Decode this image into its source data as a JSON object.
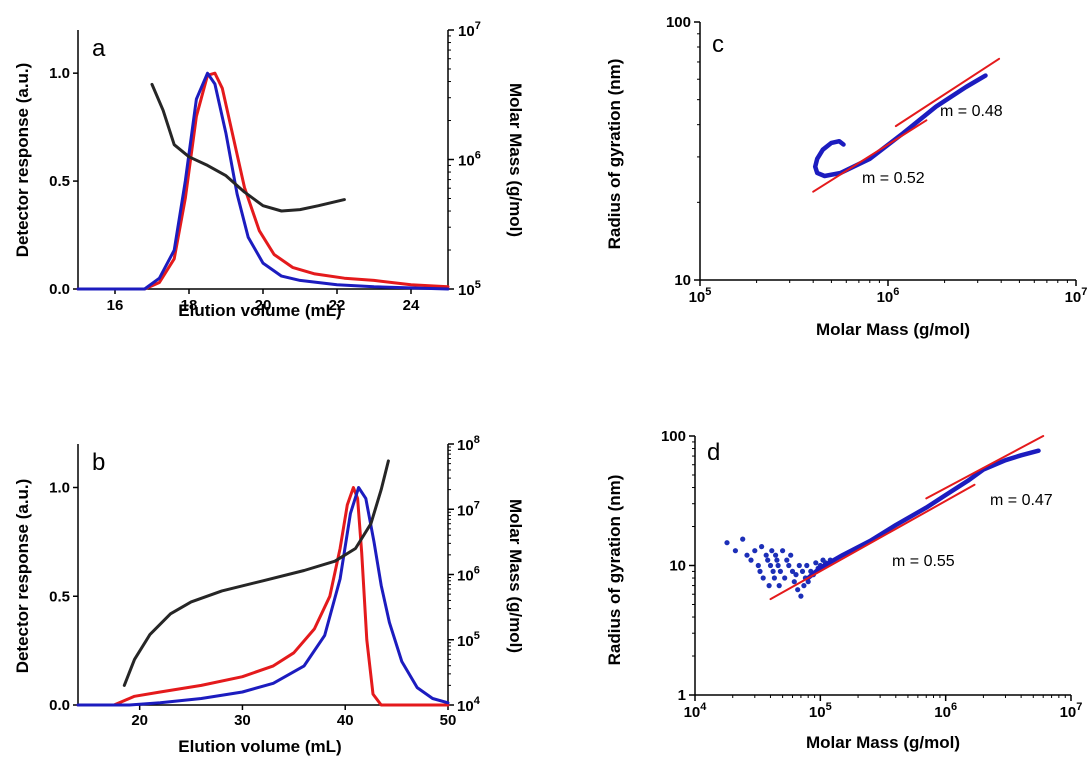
{
  "colors": {
    "red": "#e41a1c",
    "blue": "#1c1cbf",
    "black": "#262626",
    "fit": "#e01e1e",
    "dots": "#1c2fb8"
  },
  "chart_data": [
    {
      "panel": "a",
      "type": "line",
      "xlabel": "Elution volume (mL)",
      "ylabel": "Detector response (a.u.)",
      "y2label": "Molar Mass (g/mol)",
      "xlim": [
        15,
        25
      ],
      "ylim": [
        0,
        1.2
      ],
      "y2lim": [
        100000,
        10000000
      ],
      "y2scale": "log",
      "xticks": [
        "16",
        "18",
        "20",
        "22",
        "24"
      ],
      "yticks": [
        "0.0",
        "0.5",
        "1.0"
      ],
      "y2ticks": [
        [
          "10",
          "5"
        ],
        [
          "10",
          "6"
        ],
        [
          "10",
          "7"
        ]
      ],
      "series": [
        {
          "color": "red",
          "axis": "y",
          "x": [
            15,
            16.8,
            17.2,
            17.6,
            17.9,
            18.2,
            18.5,
            18.7,
            18.9,
            19.2,
            19.5,
            19.9,
            20.3,
            20.8,
            21.4,
            22.2,
            23,
            24,
            25
          ],
          "y": [
            0,
            0,
            0.03,
            0.14,
            0.42,
            0.8,
            0.99,
            1.0,
            0.93,
            0.7,
            0.47,
            0.27,
            0.16,
            0.1,
            0.07,
            0.05,
            0.04,
            0.02,
            0.01
          ]
        },
        {
          "color": "blue",
          "axis": "y",
          "x": [
            15,
            16.8,
            17.2,
            17.6,
            17.9,
            18.2,
            18.5,
            18.7,
            19.0,
            19.3,
            19.6,
            20.0,
            20.5,
            21.0,
            22,
            23,
            25
          ],
          "y": [
            0,
            0,
            0.05,
            0.18,
            0.5,
            0.88,
            1.0,
            0.95,
            0.72,
            0.44,
            0.24,
            0.12,
            0.06,
            0.04,
            0.02,
            0.01,
            0.0
          ]
        },
        {
          "color": "black",
          "axis": "y2",
          "x": [
            17.0,
            17.3,
            17.6,
            18.0,
            18.5,
            19.0,
            19.5,
            20.0,
            20.5,
            21.0,
            21.5,
            22.2
          ],
          "y": [
            3800000,
            2400000,
            1300000,
            1050000,
            900000,
            750000,
            560000,
            440000,
            400000,
            410000,
            440000,
            490000
          ]
        }
      ]
    },
    {
      "panel": "b",
      "type": "line",
      "xlabel": "Elution volume (mL)",
      "ylabel": "Detector response (a.u.)",
      "y2label": "Molar Mass (g/mol)",
      "xlim": [
        14,
        50
      ],
      "ylim": [
        0,
        1.2
      ],
      "y2lim": [
        10000,
        100000000
      ],
      "y2scale": "log",
      "xticks": [
        "20",
        "30",
        "40",
        "50"
      ],
      "yticks": [
        "0.0",
        "0.5",
        "1.0"
      ],
      "y2ticks": [
        [
          "10",
          "4"
        ],
        [
          "10",
          "5"
        ],
        [
          "10",
          "6"
        ],
        [
          "10",
          "7"
        ],
        [
          "10",
          "8"
        ]
      ],
      "series": [
        {
          "color": "red",
          "axis": "y",
          "x": [
            14,
            17.5,
            18.5,
            19.5,
            22,
            26,
            30,
            33,
            35,
            37,
            38.5,
            39.5,
            40.2,
            40.8,
            41.2,
            41.6,
            42.1,
            42.7,
            43.5,
            50
          ],
          "y": [
            0,
            0,
            0.02,
            0.04,
            0.06,
            0.09,
            0.13,
            0.18,
            0.24,
            0.35,
            0.5,
            0.72,
            0.92,
            1.0,
            0.95,
            0.7,
            0.3,
            0.05,
            0.0,
            0.0
          ]
        },
        {
          "color": "blue",
          "axis": "y",
          "x": [
            14,
            19,
            22,
            26,
            30,
            33,
            36,
            38,
            39.5,
            40.5,
            41.3,
            42,
            42.8,
            43.5,
            44.3,
            45.5,
            47,
            48.5,
            50
          ],
          "y": [
            0,
            0,
            0.01,
            0.03,
            0.06,
            0.1,
            0.18,
            0.32,
            0.58,
            0.88,
            1.0,
            0.95,
            0.75,
            0.55,
            0.38,
            0.2,
            0.08,
            0.03,
            0.01
          ]
        },
        {
          "color": "black",
          "axis": "y2",
          "x": [
            18.5,
            19.5,
            21,
            23,
            25,
            28,
            32,
            36,
            39,
            41,
            42.5,
            43.5,
            44.2
          ],
          "y": [
            20000,
            50000,
            120000,
            250000,
            380000,
            560000,
            800000,
            1150000,
            1600000,
            2500000,
            6000000,
            20000000,
            55000000
          ]
        }
      ]
    },
    {
      "panel": "c",
      "type": "line",
      "xlabel": "Molar Mass (g/mol)",
      "ylabel": "Radius of gyration (nm)",
      "xscale": "log",
      "yscale": "log",
      "xlim": [
        100000,
        10000000
      ],
      "ylim": [
        10,
        100
      ],
      "xticks": [
        [
          "10",
          "5"
        ],
        [
          "10",
          "6"
        ],
        [
          "10",
          "7"
        ]
      ],
      "yticks": [
        "10",
        "100"
      ],
      "annotations": [
        "m = 0.48",
        "m = 0.52"
      ],
      "series": [
        {
          "color": "blue",
          "x": [
            580000,
            550000,
            500000,
            450000,
            420000,
            410000,
            420000,
            460000,
            560000,
            800000,
            1200000,
            1800000,
            2600000,
            3300000
          ],
          "y": [
            33.5,
            34.5,
            34.0,
            32.0,
            29.5,
            27.5,
            26.0,
            25.3,
            26.0,
            29.5,
            37.0,
            47.0,
            56.0,
            62.0
          ]
        },
        {
          "color": "red",
          "x": [
            400000,
            1600000
          ],
          "y": [
            22.0,
            41.6
          ]
        },
        {
          "color": "red",
          "x": [
            1100000,
            3900000
          ],
          "y": [
            39.5,
            72.0
          ]
        }
      ]
    },
    {
      "panel": "d",
      "type": "scatter",
      "xlabel": "Molar Mass (g/mol)",
      "ylabel": "Radius of gyration (nm)",
      "xscale": "log",
      "yscale": "log",
      "xlim": [
        10000,
        10000000
      ],
      "ylim": [
        1,
        100
      ],
      "xticks": [
        [
          "10",
          "4"
        ],
        [
          "10",
          "5"
        ],
        [
          "10",
          "6"
        ],
        [
          "10",
          "7"
        ]
      ],
      "yticks": [
        "1",
        "10",
        "100"
      ],
      "annotations": [
        "m = 0.47",
        "m = 0.55"
      ],
      "series": [
        {
          "color": "dots",
          "x": [
            18000,
            21000,
            24000,
            26000,
            28000,
            30000,
            32000,
            33000,
            34000,
            35000,
            37000,
            38000,
            39000,
            40000,
            41000,
            42000,
            43000,
            44000,
            45000,
            46000,
            47000,
            48000,
            50000,
            52000,
            54000,
            56000,
            58000,
            60000,
            62000,
            64000,
            66000,
            68000,
            70000,
            72000,
            74000,
            76000,
            78000,
            80000,
            84000,
            88000,
            92000,
            96000,
            100000,
            105000,
            110000,
            120000
          ],
          "y": [
            15,
            13,
            16,
            12,
            11,
            13,
            10,
            9,
            14,
            8,
            12,
            11,
            7,
            10,
            13,
            9,
            8,
            12,
            11,
            10,
            7,
            9,
            13,
            8,
            11,
            10,
            12,
            9,
            7.5,
            8.5,
            6.5,
            10,
            5.8,
            9,
            7,
            8,
            10,
            7.5,
            9,
            8.5,
            10.5,
            9.5,
            10,
            11,
            10.5,
            11
          ]
        },
        {
          "color": "blue",
          "x": [
            80000,
            100000,
            150000,
            250000,
            400000,
            700000,
            1000000,
            1500000,
            2000000,
            3000000,
            4000000,
            5500000
          ],
          "y": [
            8.0,
            9.6,
            12.0,
            15.5,
            20.5,
            28.0,
            35.0,
            45.0,
            55.0,
            65.0,
            71.0,
            77.0
          ]
        },
        {
          "color": "red",
          "x": [
            40000,
            1700000
          ],
          "y": [
            5.5,
            42.0
          ]
        },
        {
          "color": "red",
          "x": [
            700000,
            6000000
          ],
          "y": [
            33.0,
            100.0
          ]
        }
      ]
    }
  ]
}
